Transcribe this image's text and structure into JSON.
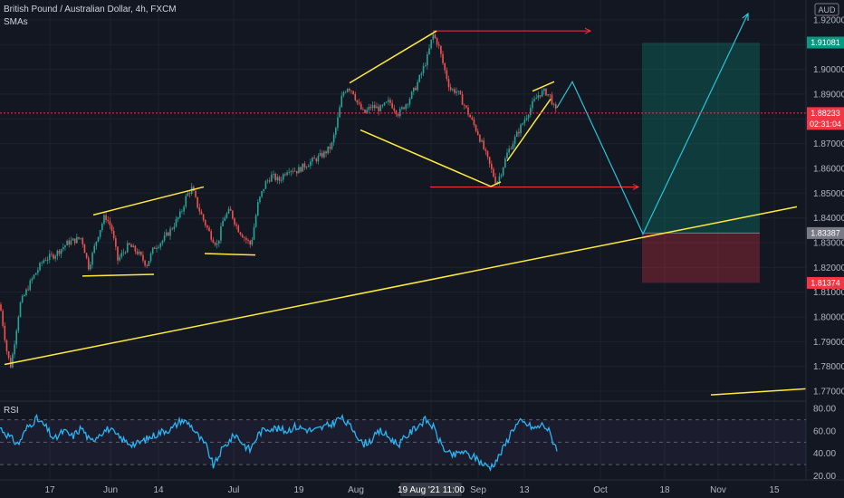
{
  "header": {
    "symbol_line": "British Pound / Australian Dollar, 4h, FXCM",
    "indicator": "SMAs",
    "currency": "AUD"
  },
  "chart_data": {
    "type": "candlestick",
    "symbol": "GBPAUD",
    "timeframe": "4h",
    "y_axis": {
      "ticks": [
        "1.92000",
        "1.91000",
        "1.90000",
        "1.89000",
        "1.88000",
        "1.87000",
        "1.86000",
        "1.85000",
        "1.84000",
        "1.83000",
        "1.82000",
        "1.81000",
        "1.80000",
        "1.79000",
        "1.78000",
        "1.77000"
      ],
      "range": [
        1.766,
        1.928
      ]
    },
    "x_axis": {
      "ticks": [
        "17",
        "Jun",
        "14",
        "Jul",
        "19",
        "Aug",
        "19 Aug '21  11:00",
        "Sep",
        "13",
        "Oct",
        "18",
        "Nov",
        "15"
      ]
    },
    "price_tags": [
      {
        "label": "1.91081",
        "value": 1.91081,
        "color": "#089981"
      },
      {
        "label": "1.88233",
        "value": 1.88233,
        "color": "#f23645"
      },
      {
        "label": "02:31:04",
        "color": "#f23645"
      },
      {
        "label": "1.83387",
        "value": 1.83387,
        "color": "#787b86"
      },
      {
        "label": "1.81374",
        "value": 1.81374,
        "color": "#f23645"
      }
    ],
    "current_price": 1.88233,
    "trade_box": {
      "entry": 1.83387,
      "target": 1.91081,
      "stop": 1.81374
    },
    "price_path_keypoints": [
      [
        0,
        1.805
      ],
      [
        8,
        1.785
      ],
      [
        12,
        1.78
      ],
      [
        22,
        1.805
      ],
      [
        35,
        1.815
      ],
      [
        48,
        1.823
      ],
      [
        60,
        1.825
      ],
      [
        75,
        1.83
      ],
      [
        90,
        1.832
      ],
      [
        98,
        1.82
      ],
      [
        108,
        1.833
      ],
      [
        116,
        1.841
      ],
      [
        123,
        1.836
      ],
      [
        130,
        1.823
      ],
      [
        142,
        1.829
      ],
      [
        152,
        1.826
      ],
      [
        162,
        1.821
      ],
      [
        170,
        1.828
      ],
      [
        180,
        1.831
      ],
      [
        190,
        1.836
      ],
      [
        200,
        1.842
      ],
      [
        206,
        1.849
      ],
      [
        212,
        1.852
      ],
      [
        218,
        1.845
      ],
      [
        226,
        1.838
      ],
      [
        234,
        1.832
      ],
      [
        240,
        1.829
      ],
      [
        247,
        1.84
      ],
      [
        254,
        1.843
      ],
      [
        262,
        1.836
      ],
      [
        270,
        1.832
      ],
      [
        277,
        1.829
      ],
      [
        285,
        1.846
      ],
      [
        293,
        1.854
      ],
      [
        300,
        1.857
      ],
      [
        308,
        1.855
      ],
      [
        318,
        1.86
      ],
      [
        328,
        1.859
      ],
      [
        340,
        1.862
      ],
      [
        350,
        1.864
      ],
      [
        358,
        1.866
      ],
      [
        366,
        1.869
      ],
      [
        372,
        1.878
      ],
      [
        378,
        1.89
      ],
      [
        384,
        1.893
      ],
      [
        390,
        1.891
      ],
      [
        395,
        1.886
      ],
      [
        402,
        1.882
      ],
      [
        410,
        1.885
      ],
      [
        420,
        1.884
      ],
      [
        430,
        1.887
      ],
      [
        440,
        1.882
      ],
      [
        450,
        1.887
      ],
      [
        458,
        1.892
      ],
      [
        465,
        1.898
      ],
      [
        472,
        1.905
      ],
      [
        478,
        1.914
      ],
      [
        484,
        1.91
      ],
      [
        490,
        1.901
      ],
      [
        497,
        1.892
      ],
      [
        505,
        1.891
      ],
      [
        512,
        1.886
      ],
      [
        520,
        1.88
      ],
      [
        528,
        1.874
      ],
      [
        536,
        1.866
      ],
      [
        543,
        1.859
      ],
      [
        548,
        1.854
      ],
      [
        553,
        1.858
      ],
      [
        560,
        1.866
      ],
      [
        567,
        1.871
      ],
      [
        574,
        1.876
      ],
      [
        581,
        1.881
      ],
      [
        588,
        1.886
      ],
      [
        595,
        1.89
      ],
      [
        602,
        1.891
      ],
      [
        608,
        1.889
      ],
      [
        611,
        1.885
      ],
      [
        615,
        1.882
      ]
    ],
    "rsi": {
      "label": "RSI",
      "levels": [
        70,
        50,
        30
      ],
      "ticks": [
        "80.00",
        "60.00",
        "40.00",
        "20.00"
      ],
      "range": [
        18,
        85
      ],
      "keypoints": [
        [
          0,
          63
        ],
        [
          10,
          55
        ],
        [
          20,
          48
        ],
        [
          30,
          63
        ],
        [
          40,
          71
        ],
        [
          50,
          64
        ],
        [
          60,
          52
        ],
        [
          70,
          60
        ],
        [
          80,
          55
        ],
        [
          90,
          63
        ],
        [
          100,
          50
        ],
        [
          110,
          58
        ],
        [
          120,
          62
        ],
        [
          130,
          55
        ],
        [
          140,
          50
        ],
        [
          150,
          48
        ],
        [
          160,
          52
        ],
        [
          170,
          56
        ],
        [
          180,
          60
        ],
        [
          190,
          62
        ],
        [
          200,
          70
        ],
        [
          210,
          66
        ],
        [
          220,
          54
        ],
        [
          228,
          46
        ],
        [
          236,
          28
        ],
        [
          244,
          42
        ],
        [
          252,
          50
        ],
        [
          260,
          57
        ],
        [
          268,
          49
        ],
        [
          276,
          43
        ],
        [
          286,
          58
        ],
        [
          296,
          63
        ],
        [
          306,
          62
        ],
        [
          316,
          60
        ],
        [
          326,
          64
        ],
        [
          336,
          62
        ],
        [
          346,
          60
        ],
        [
          356,
          63
        ],
        [
          366,
          66
        ],
        [
          376,
          72
        ],
        [
          384,
          66
        ],
        [
          392,
          60
        ],
        [
          400,
          48
        ],
        [
          410,
          52
        ],
        [
          420,
          60
        ],
        [
          430,
          54
        ],
        [
          440,
          48
        ],
        [
          450,
          56
        ],
        [
          460,
          64
        ],
        [
          470,
          70
        ],
        [
          478,
          64
        ],
        [
          486,
          50
        ],
        [
          494,
          40
        ],
        [
          502,
          38
        ],
        [
          510,
          42
        ],
        [
          518,
          38
        ],
        [
          526,
          36
        ],
        [
          534,
          30
        ],
        [
          542,
          28
        ],
        [
          550,
          36
        ],
        [
          558,
          48
        ],
        [
          566,
          62
        ],
        [
          574,
          68
        ],
        [
          582,
          66
        ],
        [
          590,
          62
        ],
        [
          600,
          66
        ],
        [
          606,
          60
        ],
        [
          610,
          52
        ],
        [
          615,
          45
        ]
      ]
    },
    "annotations": [
      {
        "type": "trend_line",
        "color": "#ffeb3b",
        "from": [
          5,
          1.7808
        ],
        "to": [
          880,
          1.8445
        ]
      },
      {
        "type": "trend_line",
        "color": "#ffeb3b",
        "from": [
          785,
          1.7685
        ],
        "to": [
          890,
          1.771
        ]
      },
      {
        "type": "trend_line",
        "color": "#ffeb3b",
        "from": [
          103,
          1.8412
        ],
        "to": [
          225,
          1.8525
        ]
      },
      {
        "type": "trend_line",
        "color": "#ffeb3b",
        "from": [
          91,
          1.8165
        ],
        "to": [
          170,
          1.8172
        ]
      },
      {
        "type": "trend_line",
        "color": "#ffeb3b",
        "from": [
          226,
          1.8256
        ],
        "to": [
          282,
          1.825
        ]
      },
      {
        "type": "trend_line",
        "color": "#ffeb3b",
        "from": [
          386,
          1.8945
        ],
        "to": [
          482,
          1.9155
        ]
      },
      {
        "type": "trend_line",
        "color": "#ffeb3b",
        "from": [
          398,
          1.8755
        ],
        "to": [
          542,
          1.8527
        ]
      },
      {
        "type": "trend_line",
        "color": "#ffeb3b",
        "from": [
          542,
          1.8527
        ],
        "to": [
          553,
          1.8545
        ]
      },
      {
        "type": "trend_line",
        "color": "#ffeb3b",
        "from": [
          560,
          1.863
        ],
        "to": [
          608,
          1.888
        ]
      },
      {
        "type": "trend_line",
        "color": "#ffeb3b",
        "from": [
          588,
          1.8912
        ],
        "to": [
          612,
          1.895
        ]
      },
      {
        "type": "horizontal_ray",
        "color": "#f23645",
        "from": [
          478,
          1.9155
        ],
        "to": [
          652,
          1.9155
        ]
      },
      {
        "type": "horizontal_ray",
        "color": "#f23645",
        "from": [
          475,
          1.8525
        ],
        "to": [
          705,
          1.8525
        ]
      },
      {
        "type": "path_arrow",
        "color": "#26c6da",
        "points": [
          [
            615,
            1.8845
          ],
          [
            632,
            1.895
          ],
          [
            710,
            1.8335
          ],
          [
            826,
            1.9225
          ]
        ]
      }
    ]
  }
}
